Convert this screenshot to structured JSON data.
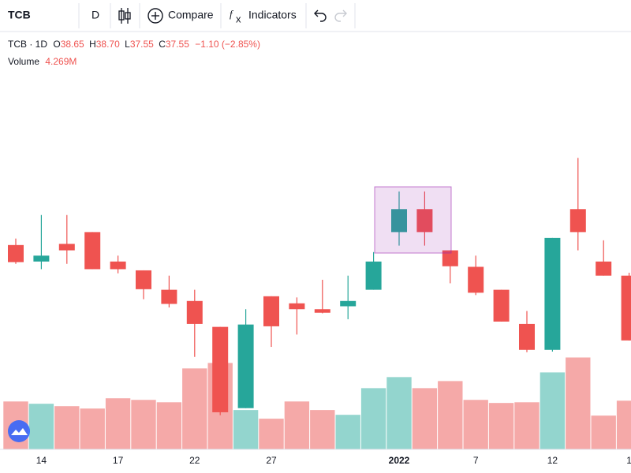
{
  "toolbar": {
    "symbol": "TCB",
    "interval": "D",
    "compare": "Compare",
    "indicators": "Indicators"
  },
  "legend": {
    "title": "TCB · 1D",
    "ohlc": [
      {
        "label": "O",
        "value": "38.65"
      },
      {
        "label": "H",
        "value": "38.70"
      },
      {
        "label": "L",
        "value": "37.55"
      },
      {
        "label": "C",
        "value": "37.55"
      }
    ],
    "change": "−1.10 (−2.85%)",
    "volume_label": "Volume",
    "volume_value": "4.269M"
  },
  "chart_data": {
    "type": "candlestick",
    "categories": [
      null,
      "14",
      null,
      null,
      "17",
      null,
      null,
      "22",
      null,
      null,
      "27",
      null,
      null,
      null,
      null,
      "2022",
      null,
      null,
      "7",
      null,
      null,
      "12",
      null,
      null,
      "1"
    ],
    "open": [
      39.17,
      38.89,
      39.19,
      39.39,
      38.89,
      38.74,
      38.41,
      38.22,
      37.78,
      36.4,
      38.3,
      38.18,
      38.08,
      38.13,
      38.41,
      39.39,
      39.78,
      39.08,
      38.8,
      38.41,
      37.83,
      37.39,
      39.78,
      38.89,
      38.65
    ],
    "high": [
      39.28,
      39.68,
      39.68,
      39.39,
      38.99,
      38.74,
      38.65,
      38.41,
      37.78,
      38.08,
      38.3,
      38.28,
      38.58,
      38.65,
      39.05,
      40.08,
      40.08,
      39.08,
      38.99,
      38.41,
      38.05,
      39.29,
      40.65,
      39.25,
      38.7
    ],
    "low": [
      38.85,
      38.76,
      38.85,
      38.76,
      38.69,
      38.25,
      38.11,
      37.27,
      36.28,
      36.4,
      37.44,
      37.65,
      38.01,
      37.91,
      38.41,
      39.16,
      39.16,
      38.52,
      38.32,
      37.87,
      37.35,
      37.36,
      39.08,
      38.65,
      37.55
    ],
    "close": [
      38.88,
      38.99,
      39.08,
      38.76,
      38.76,
      38.42,
      38.17,
      37.83,
      36.33,
      37.82,
      37.79,
      38.08,
      38.02,
      38.22,
      38.89,
      39.78,
      39.39,
      38.81,
      38.36,
      37.87,
      37.39,
      39.29,
      39.39,
      38.65,
      37.55
    ],
    "volume": [
      4.2,
      4.0,
      3.79,
      3.58,
      4.48,
      4.34,
      4.13,
      7.1,
      7.58,
      3.45,
      2.69,
      4.2,
      3.45,
      3.03,
      5.37,
      6.34,
      5.37,
      5.99,
      4.34,
      4.07,
      4.13,
      6.75,
      8.06,
      2.96,
      4.269
    ],
    "ylim": [
      35.7,
      42.1
    ],
    "vlim": [
      0,
      8.3
    ],
    "up_color": "#26a69a",
    "down_color": "#ef5350",
    "volume_up_color": "#93d5ce",
    "volume_down_color": "#f5a9a8"
  }
}
